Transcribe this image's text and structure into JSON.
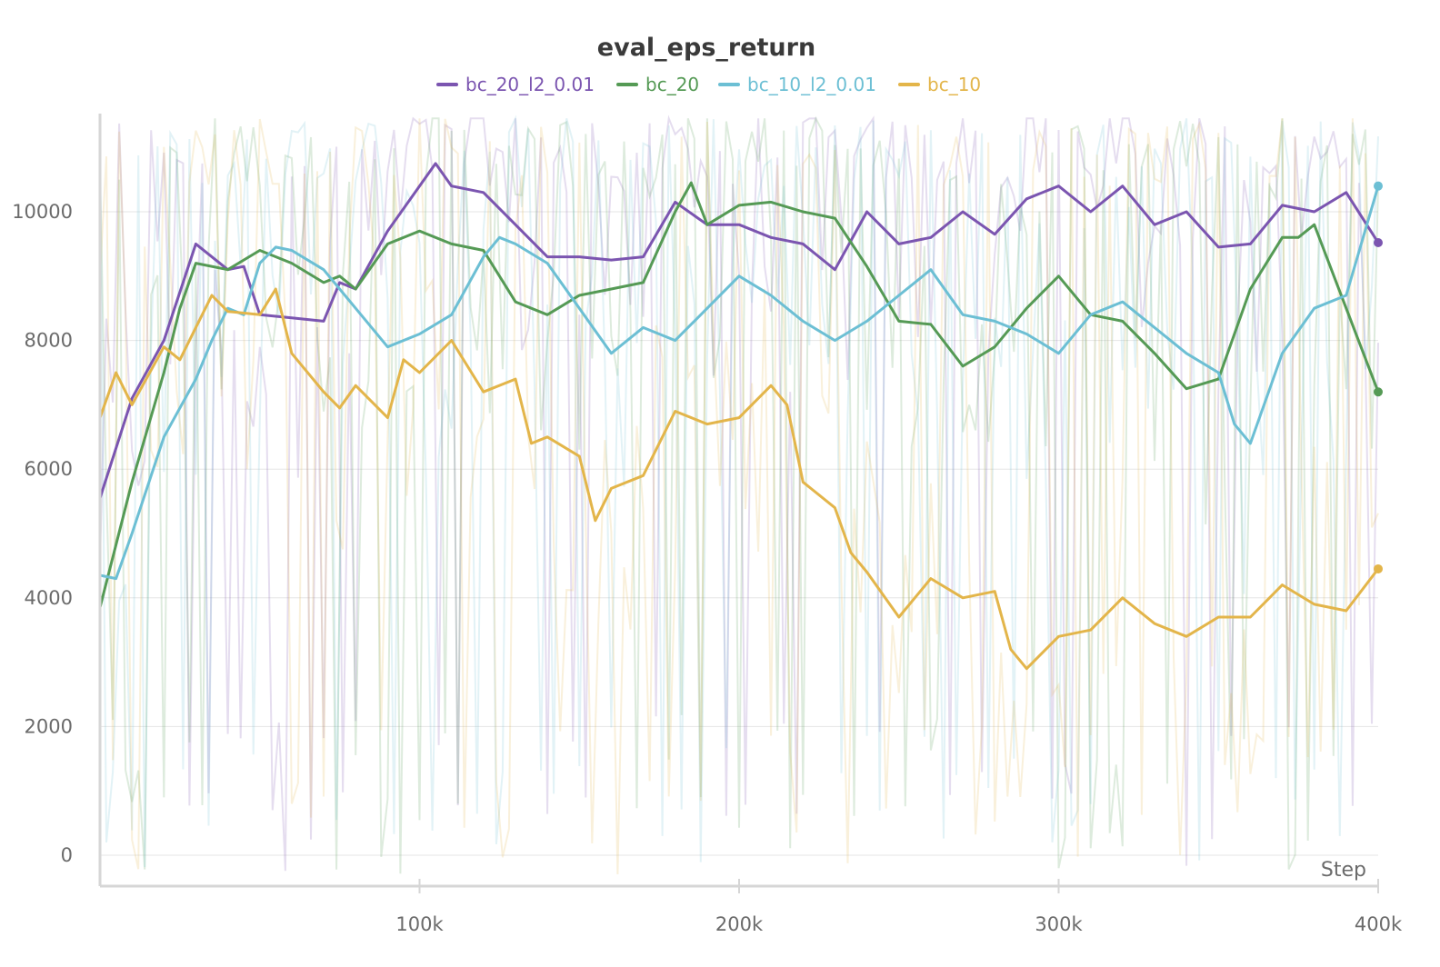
{
  "chart_data": {
    "type": "line",
    "title": "eval_eps_return",
    "xlabel": "Step",
    "ylabel": "",
    "xlim": [
      0,
      400000
    ],
    "ylim": [
      -500,
      11500
    ],
    "x_ticks": [
      {
        "value": 100000,
        "label": "100k"
      },
      {
        "value": 200000,
        "label": "200k"
      },
      {
        "value": 300000,
        "label": "300k"
      },
      {
        "value": 400000,
        "label": "400k"
      }
    ],
    "y_ticks": [
      {
        "value": 0,
        "label": "0"
      },
      {
        "value": 2000,
        "label": "2000"
      },
      {
        "value": 4000,
        "label": "4000"
      },
      {
        "value": 6000,
        "label": "6000"
      },
      {
        "value": 8000,
        "label": "8000"
      },
      {
        "value": 10000,
        "label": "10000"
      }
    ],
    "grid": true,
    "legend_position": "top-center",
    "series": [
      {
        "name": "bc_20_l2_0.01",
        "color": "#7b55b0",
        "x": [
          0,
          10000,
          20000,
          30000,
          40000,
          45000,
          50000,
          60000,
          70000,
          75000,
          80000,
          90000,
          100000,
          105000,
          110000,
          120000,
          130000,
          140000,
          150000,
          160000,
          170000,
          180000,
          190000,
          200000,
          210000,
          220000,
          230000,
          240000,
          250000,
          260000,
          270000,
          280000,
          290000,
          300000,
          310000,
          320000,
          330000,
          340000,
          350000,
          360000,
          370000,
          380000,
          390000,
          400000
        ],
        "y": [
          5550,
          7100,
          8000,
          9500,
          9100,
          9150,
          8400,
          8350,
          8300,
          8900,
          8800,
          9700,
          10400,
          10750,
          10400,
          10300,
          9800,
          9300,
          9300,
          9250,
          9300,
          10150,
          9800,
          9800,
          9600,
          9500,
          9100,
          10000,
          9500,
          9600,
          10000,
          9650,
          10200,
          10400,
          10000,
          10400,
          9800,
          10000,
          9450,
          9500,
          10100,
          10000,
          10300,
          9520
        ]
      },
      {
        "name": "bc_20",
        "color": "#559a55",
        "x": [
          0,
          10000,
          20000,
          25000,
          30000,
          40000,
          50000,
          60000,
          70000,
          75000,
          80000,
          90000,
          100000,
          110000,
          120000,
          130000,
          140000,
          150000,
          160000,
          170000,
          180000,
          185000,
          190000,
          200000,
          210000,
          220000,
          230000,
          240000,
          250000,
          260000,
          270000,
          280000,
          290000,
          300000,
          310000,
          320000,
          330000,
          340000,
          350000,
          360000,
          370000,
          375000,
          380000,
          390000,
          400000
        ],
        "y": [
          3850,
          5800,
          7500,
          8500,
          9200,
          9100,
          9400,
          9200,
          8900,
          9000,
          8800,
          9500,
          9700,
          9500,
          9400,
          8600,
          8400,
          8700,
          8800,
          8900,
          10000,
          10450,
          9800,
          10100,
          10150,
          10000,
          9900,
          9150,
          8300,
          8250,
          7600,
          7900,
          8500,
          9000,
          8400,
          8300,
          7800,
          7250,
          7400,
          8800,
          9600,
          9600,
          9800,
          8500,
          7200
        ]
      },
      {
        "name": "bc_10_l2_0.01",
        "color": "#6cbfd4",
        "x": [
          0,
          5000,
          10000,
          20000,
          30000,
          35000,
          40000,
          45000,
          50000,
          55000,
          60000,
          70000,
          80000,
          90000,
          100000,
          110000,
          120000,
          125000,
          130000,
          140000,
          150000,
          160000,
          170000,
          180000,
          190000,
          200000,
          210000,
          220000,
          230000,
          240000,
          250000,
          260000,
          270000,
          280000,
          290000,
          300000,
          310000,
          320000,
          330000,
          340000,
          350000,
          355000,
          360000,
          370000,
          380000,
          390000,
          400000
        ],
        "y": [
          4350,
          4300,
          5000,
          6500,
          7400,
          8000,
          8500,
          8400,
          9200,
          9450,
          9400,
          9100,
          8500,
          7900,
          8100,
          8400,
          9300,
          9600,
          9500,
          9200,
          8500,
          7800,
          8200,
          8000,
          8500,
          9000,
          8700,
          8300,
          8000,
          8300,
          8700,
          9100,
          8400,
          8300,
          8100,
          7800,
          8400,
          8600,
          8200,
          7800,
          7500,
          6700,
          6400,
          7800,
          8500,
          8700,
          10400
        ]
      },
      {
        "name": "bc_10",
        "color": "#e3b54a",
        "x": [
          0,
          5000,
          10000,
          20000,
          25000,
          30000,
          35000,
          40000,
          50000,
          55000,
          60000,
          70000,
          75000,
          80000,
          90000,
          95000,
          100000,
          110000,
          120000,
          130000,
          135000,
          140000,
          150000,
          155000,
          160000,
          170000,
          180000,
          190000,
          200000,
          210000,
          215000,
          220000,
          230000,
          235000,
          240000,
          250000,
          260000,
          270000,
          280000,
          285000,
          290000,
          300000,
          310000,
          320000,
          330000,
          340000,
          350000,
          360000,
          370000,
          380000,
          390000,
          400000
        ],
        "y": [
          6800,
          7500,
          7000,
          7900,
          7700,
          8200,
          8700,
          8450,
          8400,
          8800,
          7800,
          7200,
          6950,
          7300,
          6800,
          7700,
          7500,
          8000,
          7200,
          7400,
          6400,
          6500,
          6200,
          5200,
          5700,
          5900,
          6900,
          6700,
          6800,
          7300,
          7000,
          5800,
          5400,
          4700,
          4400,
          3700,
          4300,
          4000,
          4100,
          3200,
          2900,
          3400,
          3500,
          4000,
          3600,
          3400,
          3700,
          3700,
          4200,
          3900,
          3800,
          4450
        ]
      }
    ]
  }
}
